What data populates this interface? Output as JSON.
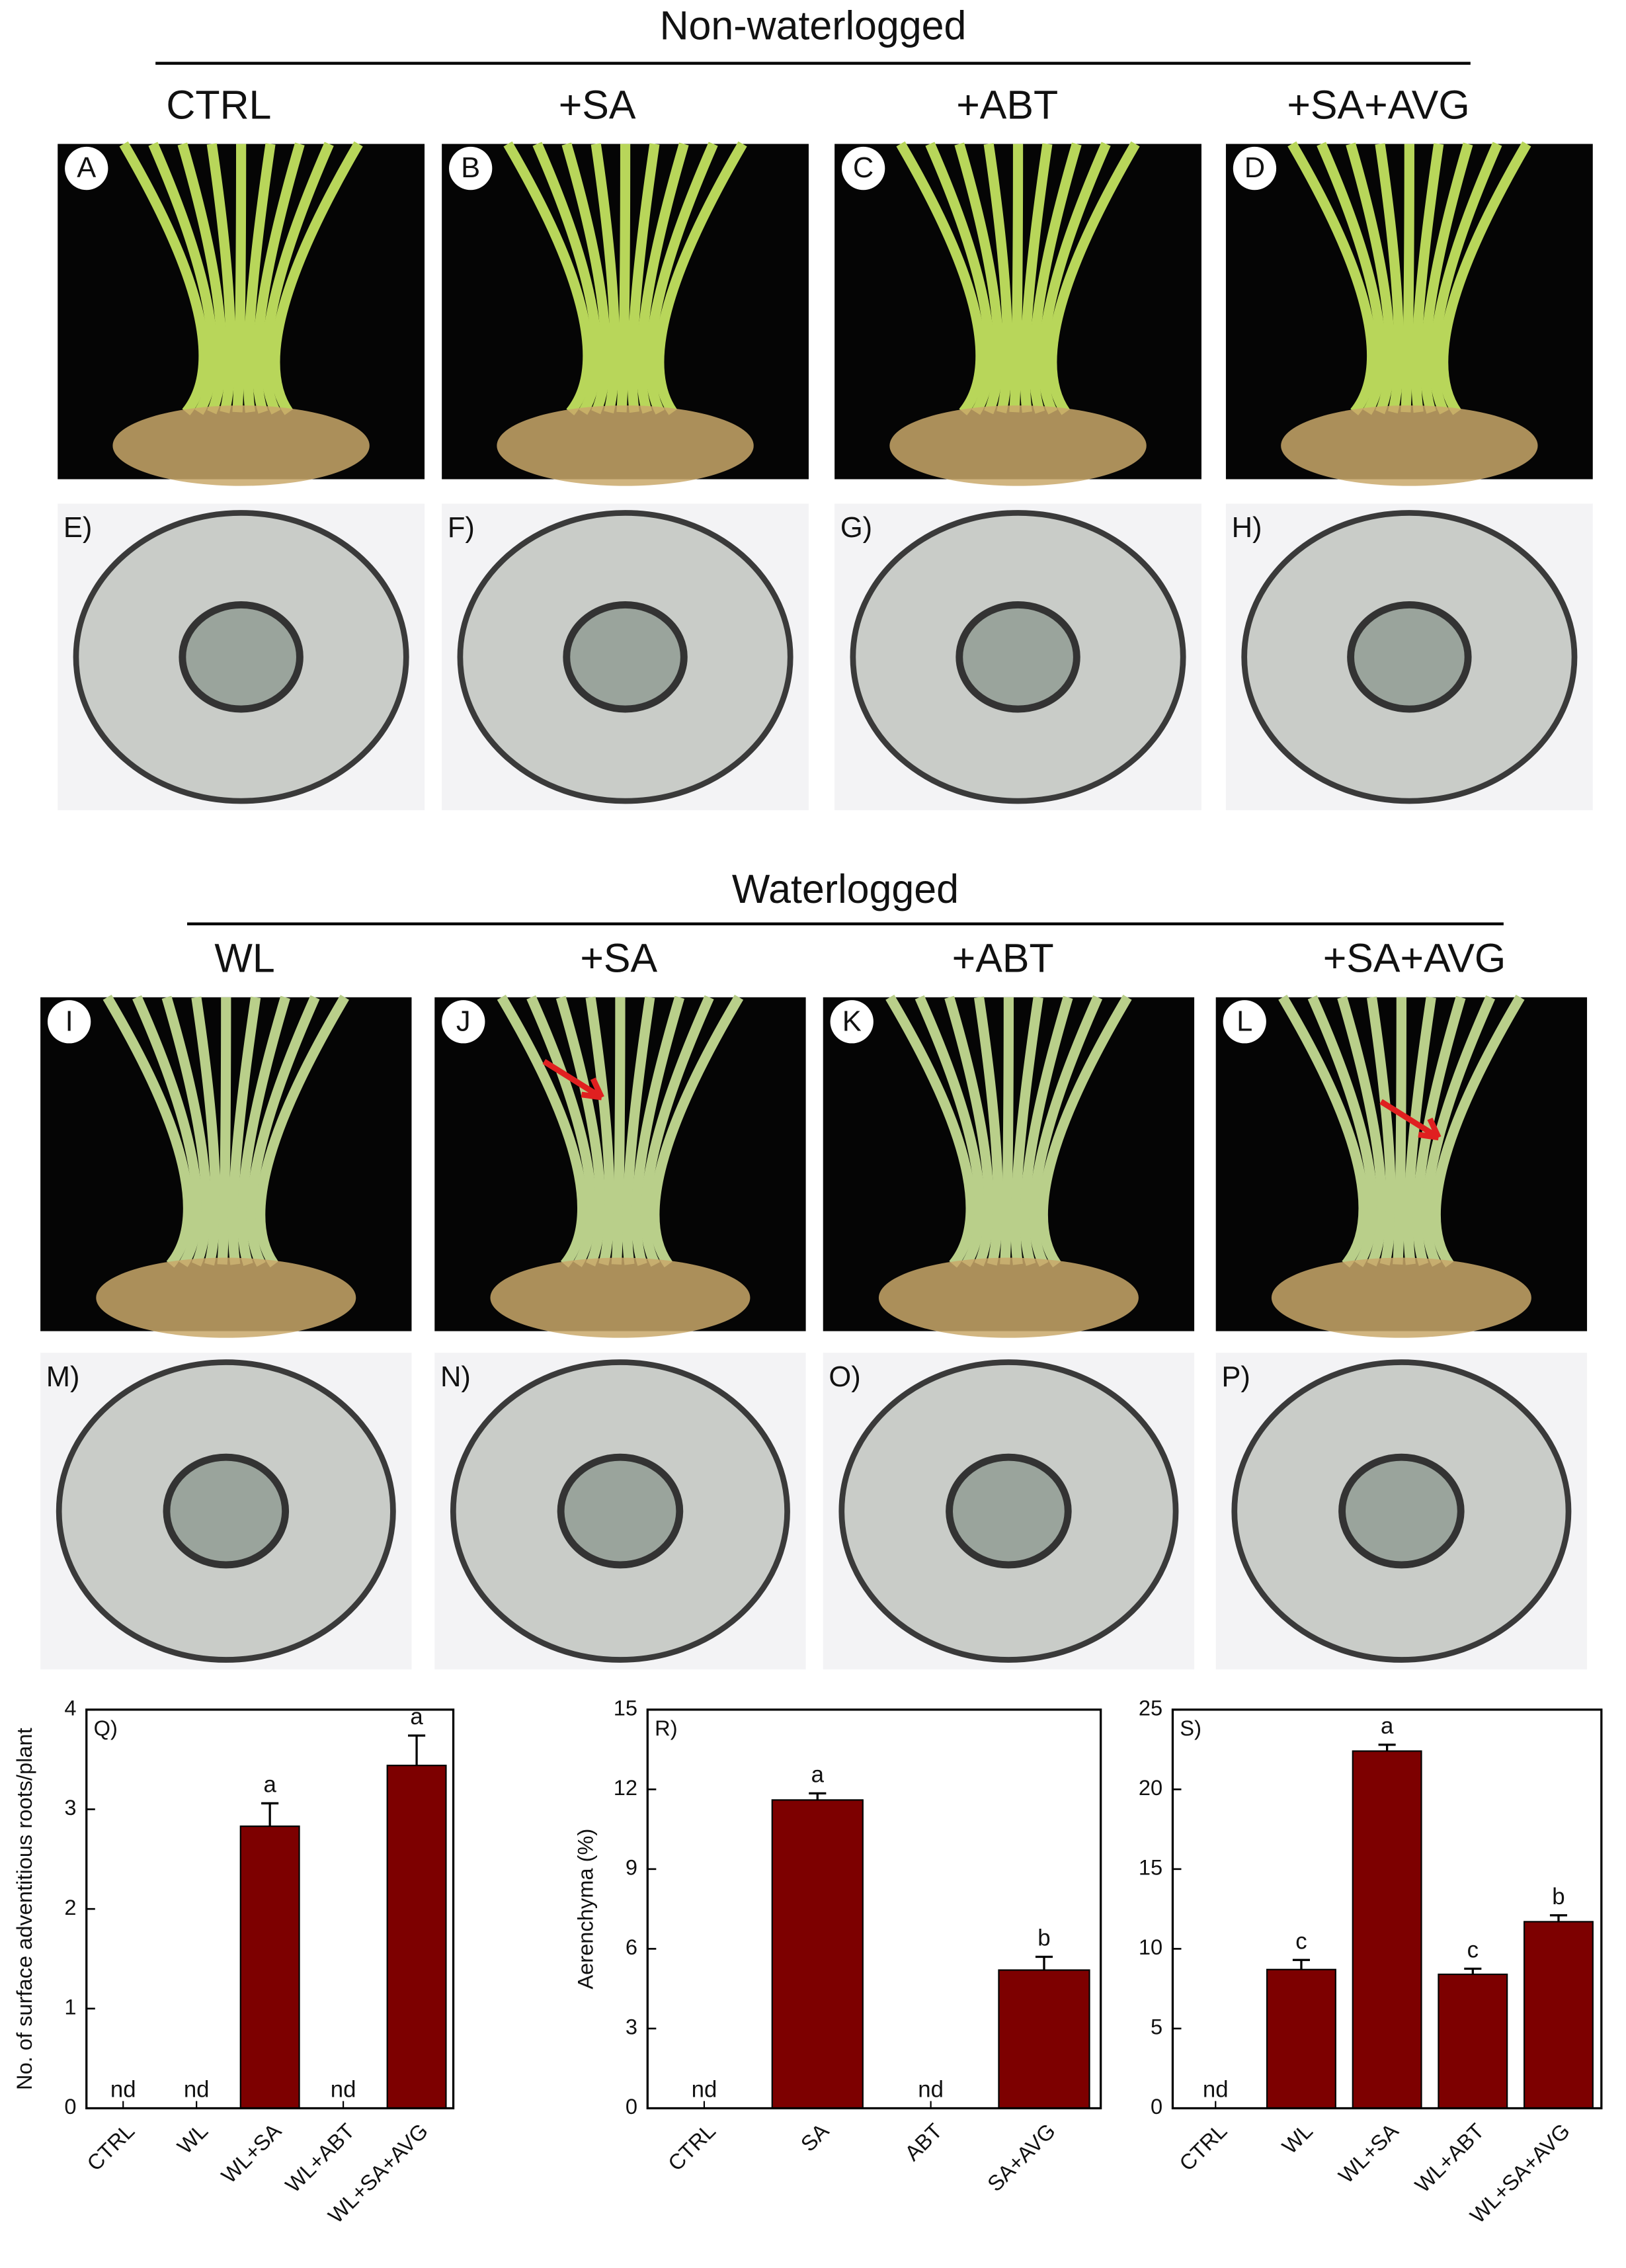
{
  "sections": [
    {
      "title": "Non-waterlogged",
      "treatments": [
        "CTRL",
        "+SA",
        "+ABT",
        "+SA+AVG"
      ],
      "photo_panels": [
        "A",
        "B",
        "C",
        "D"
      ],
      "section_panels": [
        "E)",
        "F)",
        "G)",
        "H)"
      ]
    },
    {
      "title": "Waterlogged",
      "treatments": [
        "WL",
        "+SA",
        "+ABT",
        "+SA+AVG"
      ],
      "photo_panels": [
        "I",
        "J",
        "K",
        "L"
      ],
      "section_panels": [
        "M)",
        "N)",
        "O)",
        "P)"
      ]
    }
  ],
  "chart_data": [
    {
      "type": "bar",
      "panel_label": "Q)",
      "ylabel": "No. of surface adventitious roots/plant",
      "categories": [
        "CTRL",
        "WL",
        "WL+SA",
        "WL+ABT",
        "WL+SA+AVG"
      ],
      "values": [
        null,
        null,
        2.83,
        null,
        3.44
      ],
      "errors": [
        null,
        null,
        0.23,
        null,
        0.3
      ],
      "letters": [
        "nd",
        "nd",
        "a",
        "nd",
        "a"
      ],
      "color": "#7d0000",
      "ylim": [
        0,
        4
      ],
      "yticks": [
        0,
        1,
        2,
        3,
        4
      ]
    },
    {
      "type": "bar",
      "panel_label": "R)",
      "ylabel": "Aerenchyma (%)",
      "categories": [
        "CTRL",
        "SA",
        "ABT",
        "SA+AVG"
      ],
      "values": [
        null,
        11.6,
        null,
        5.2
      ],
      "errors": [
        null,
        0.25,
        null,
        0.5
      ],
      "letters": [
        "nd",
        "a",
        "nd",
        "b"
      ],
      "color": "#7d0000",
      "ylim": [
        0,
        15
      ],
      "yticks": [
        0,
        3,
        6,
        9,
        12,
        15
      ]
    },
    {
      "type": "bar",
      "panel_label": "S)",
      "categories": [
        "CTRL",
        "WL",
        "WL+SA",
        "WL+ABT",
        "WL+SA+AVG"
      ],
      "values": [
        null,
        8.7,
        22.4,
        8.4,
        11.7
      ],
      "errors": [
        null,
        0.6,
        0.4,
        0.35,
        0.4
      ],
      "letters": [
        "nd",
        "c",
        "a",
        "c",
        "b"
      ],
      "color": "#7d0000",
      "ylim": [
        0,
        25
      ],
      "yticks": [
        0,
        5,
        10,
        15,
        20,
        25
      ]
    }
  ]
}
